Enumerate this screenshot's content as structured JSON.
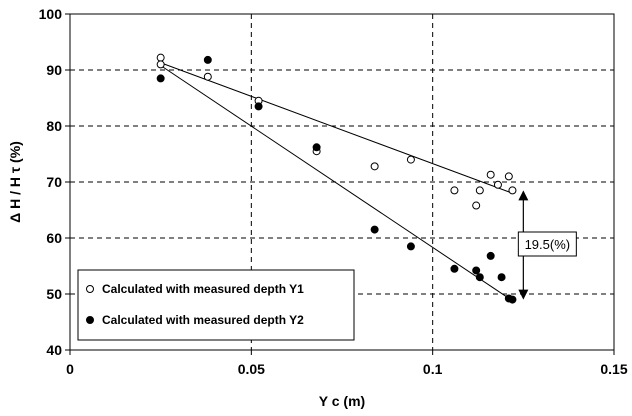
{
  "chart_data": {
    "type": "scatter",
    "xlabel": "Y c (m)",
    "ylabel": "Δ H / H τ (%)",
    "xlim": [
      0,
      0.15
    ],
    "ylim": [
      40,
      100
    ],
    "xticks": [
      0,
      0.05,
      0.1,
      0.15
    ],
    "xtick_labels": [
      "0",
      "0.05",
      "0.1",
      "0.15"
    ],
    "yticks": [
      40,
      50,
      60,
      70,
      80,
      90,
      100
    ],
    "ytick_labels": [
      "40",
      "50",
      "60",
      "70",
      "80",
      "90",
      "100"
    ],
    "grid": true,
    "legend_position": "bottom-left",
    "series": [
      {
        "name": "Calculated with measured depth Y1",
        "marker": "open-circle",
        "x": [
          0.025,
          0.025,
          0.038,
          0.052,
          0.068,
          0.084,
          0.094,
          0.106,
          0.112,
          0.113,
          0.116,
          0.118,
          0.121,
          0.122
        ],
        "y": [
          92.2,
          91.0,
          88.8,
          84.5,
          75.5,
          72.8,
          74.0,
          68.5,
          65.8,
          68.5,
          71.3,
          69.5,
          71.0,
          68.5
        ],
        "trend": {
          "x": [
            0.025,
            0.122
          ],
          "y": [
            91.3,
            68.0
          ]
        }
      },
      {
        "name": "Calculated with measured depth Y2",
        "marker": "filled-circle",
        "x": [
          0.025,
          0.038,
          0.052,
          0.068,
          0.084,
          0.094,
          0.106,
          0.112,
          0.113,
          0.116,
          0.119,
          0.121,
          0.122
        ],
        "y": [
          88.5,
          91.8,
          83.5,
          76.2,
          61.5,
          58.5,
          54.5,
          54.2,
          53.0,
          56.8,
          53.0,
          49.2,
          49.0
        ],
        "trend": {
          "x": [
            0.025,
            0.122
          ],
          "y": [
            90.8,
            48.8
          ]
        }
      }
    ],
    "annotation": {
      "text": "19.5(%)",
      "x": 0.125,
      "y_top": 68.5,
      "y_bottom": 49.0
    }
  },
  "colors": {
    "axis": "#000000",
    "grid": "#000000",
    "point": "#000000",
    "background": "#ffffff"
  }
}
